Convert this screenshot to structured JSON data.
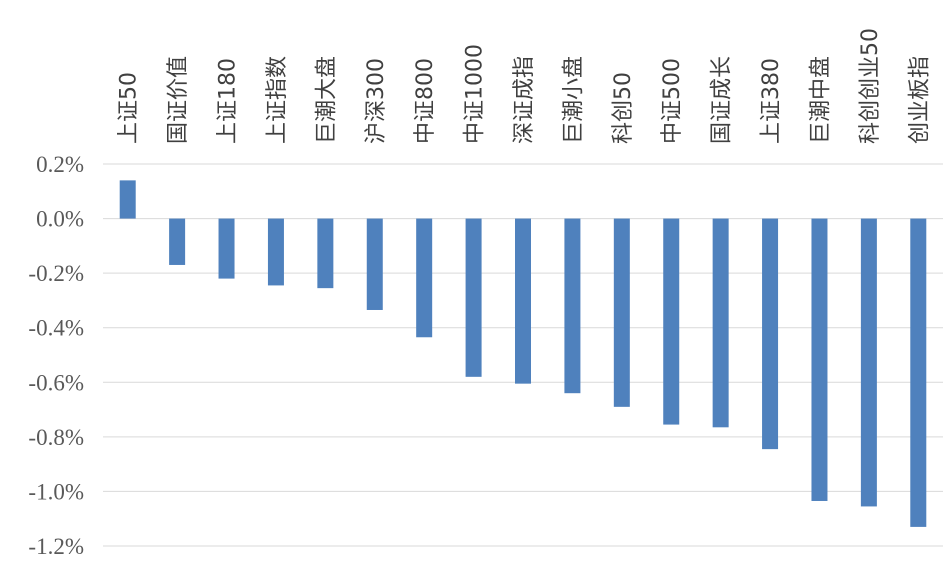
{
  "chart_data": {
    "type": "bar",
    "title": "",
    "xlabel": "",
    "ylabel": "",
    "categories": [
      "上证50",
      "国证价值",
      "上证180",
      "上证指数",
      "巨潮大盘",
      "沪深300",
      "中证800",
      "中证1000",
      "深证成指",
      "巨潮小盘",
      "科创50",
      "中证500",
      "国证成长",
      "上证380",
      "巨潮中盘",
      "科创创业50",
      "创业板指"
    ],
    "values": [
      0.14,
      -0.17,
      -0.22,
      -0.245,
      -0.255,
      -0.335,
      -0.435,
      -0.58,
      -0.605,
      -0.64,
      -0.69,
      -0.755,
      -0.765,
      -0.845,
      -1.035,
      -1.055,
      -1.13
    ],
    "unit": "%",
    "ylim": [
      -1.2,
      0.2
    ],
    "yticks": [
      0.2,
      0.0,
      -0.2,
      -0.4,
      -0.6,
      -0.8,
      -1.0,
      -1.2
    ],
    "ytick_labels": [
      "0.2%",
      "0.0%",
      "-0.2%",
      "-0.4%",
      "-0.6%",
      "-0.8%",
      "-1.0%",
      "-1.2%"
    ],
    "grid": true,
    "legend": "none",
    "bar_color": "#4f81bd",
    "category_label_position": "top"
  }
}
